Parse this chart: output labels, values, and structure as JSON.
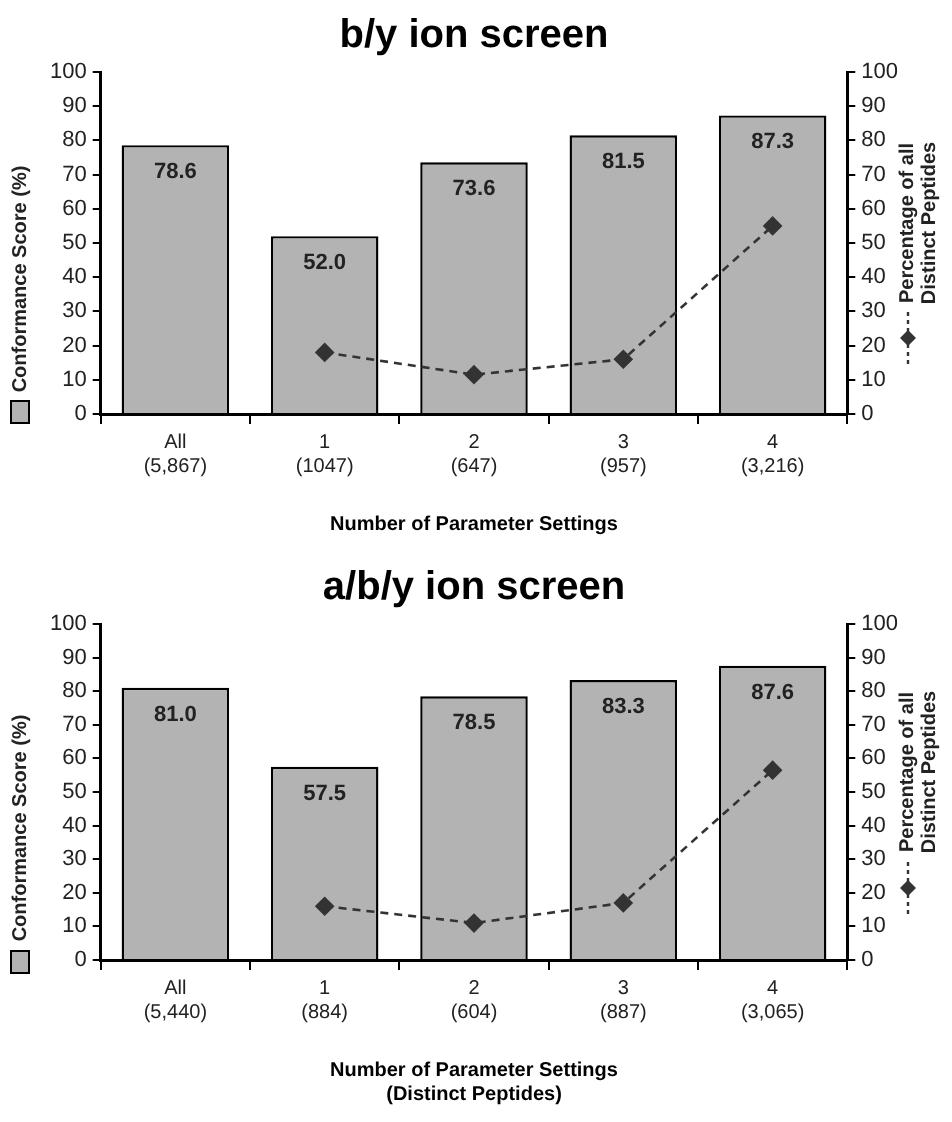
{
  "chart_data": [
    {
      "type": "bar",
      "title": "b/y ion screen",
      "xlabel": "Number of Parameter Settings",
      "ylabel": "Conformance Score (%)",
      "y2label": "Percentage of all\nDistinct Peptides",
      "categories": [
        "All\n(5,867)",
        "1\n(1047)",
        "2\n(647)",
        "3\n(957)",
        "4\n(3,216)"
      ],
      "series": [
        {
          "color": "#b3b3b3",
          "values": [
            78.6,
            52.0,
            73.6,
            81.5,
            87.3
          ],
          "value_labels": [
            "78.6",
            "52.0",
            "73.6",
            "81.5",
            "87.3"
          ]
        },
        {
          "type": "line",
          "axis": "y2",
          "color": "#333333",
          "marker": "diamond",
          "line_style": "dashed",
          "values": [
            null,
            18,
            11.5,
            16,
            55
          ]
        }
      ],
      "ylim": [
        0,
        100
      ],
      "yticks": [
        0,
        10,
        20,
        30,
        40,
        50,
        60,
        70,
        80,
        90,
        100
      ],
      "y2lim": [
        0,
        100
      ],
      "y2ticks": [
        0,
        10,
        20,
        30,
        40,
        50,
        60,
        70,
        80,
        90,
        100
      ],
      "grid": false,
      "legend": false
    },
    {
      "type": "bar",
      "title": "a/b/y ion screen",
      "xlabel": "Number of Parameter Settings\n(Distinct Peptides)",
      "ylabel": "Conformance Score (%)",
      "y2label": "Percentage of all\nDistinct Peptides",
      "categories": [
        "All\n(5,440)",
        "1\n(884)",
        "2\n(604)",
        "3\n(887)",
        "4\n(3,065)"
      ],
      "series": [
        {
          "color": "#b3b3b3",
          "values": [
            81.0,
            57.5,
            78.5,
            83.3,
            87.6
          ],
          "value_labels": [
            "81.0",
            "57.5",
            "78.5",
            "83.3",
            "87.6"
          ]
        },
        {
          "type": "line",
          "axis": "y2",
          "color": "#333333",
          "marker": "diamond",
          "line_style": "dashed",
          "values": [
            null,
            16,
            11,
            17,
            56.5
          ]
        }
      ],
      "ylim": [
        0,
        100
      ],
      "yticks": [
        0,
        10,
        20,
        30,
        40,
        50,
        60,
        70,
        80,
        90,
        100
      ],
      "y2lim": [
        0,
        100
      ],
      "y2ticks": [
        0,
        10,
        20,
        30,
        40,
        50,
        60,
        70,
        80,
        90,
        100
      ],
      "grid": false,
      "legend": false
    }
  ]
}
